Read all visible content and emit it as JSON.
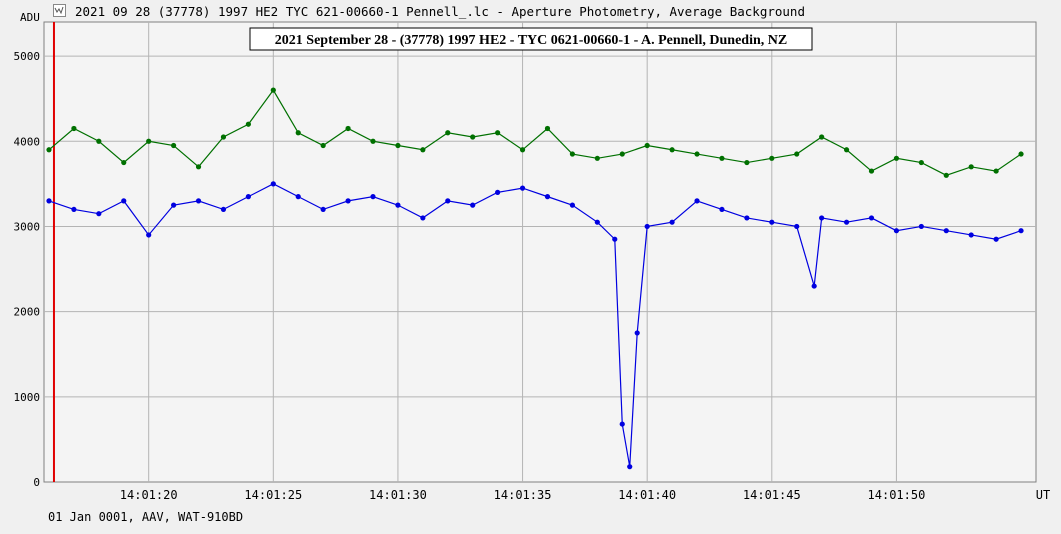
{
  "window": {
    "title": "2021 09 28 (37778) 1997 HE2 TYC 621-00660-1 Pennell_.lc - Aperture Photometry, Average Background",
    "icon": "lightcurve-app-icon"
  },
  "footer": {
    "info": "01 Jan 0001, AAV, WAT-910BD"
  },
  "chart_data": {
    "type": "line",
    "title": "2021 September 28 - (37778) 1997 HE2 - TYC 0621-00660-1 - A. Pennell, Dunedin, NZ",
    "ylabel": "ADU",
    "xunit": "UT",
    "ylim": [
      0,
      5400
    ],
    "xlim": [
      "14:01:15.8",
      "14:01:55.6"
    ],
    "xticks": [
      "14:01:20",
      "14:01:25",
      "14:01:30",
      "14:01:35",
      "14:01:40",
      "14:01:45",
      "14:01:50"
    ],
    "yticks": [
      0,
      1000,
      2000,
      3000,
      4000,
      5000
    ],
    "grid": true,
    "marker_line": {
      "x": "14:01:16.2",
      "color": "#e00000"
    },
    "series": [
      {
        "color": "#007000",
        "marker": "circle",
        "x": [
          "14:01:16",
          "14:01:17",
          "14:01:18",
          "14:01:19",
          "14:01:20",
          "14:01:21",
          "14:01:22",
          "14:01:23",
          "14:01:24",
          "14:01:25",
          "14:01:26",
          "14:01:27",
          "14:01:28",
          "14:01:29",
          "14:01:30",
          "14:01:31",
          "14:01:32",
          "14:01:33",
          "14:01:34",
          "14:01:35",
          "14:01:36",
          "14:01:37",
          "14:01:38",
          "14:01:39",
          "14:01:40",
          "14:01:41",
          "14:01:42",
          "14:01:43",
          "14:01:44",
          "14:01:45",
          "14:01:46",
          "14:01:47",
          "14:01:48",
          "14:01:49",
          "14:01:50",
          "14:01:51",
          "14:01:52",
          "14:01:53",
          "14:01:54",
          "14:01:55"
        ],
        "values": [
          3900,
          4150,
          4000,
          3750,
          4000,
          3950,
          3700,
          4050,
          4200,
          4600,
          4100,
          3950,
          4150,
          4000,
          3950,
          3900,
          4100,
          4050,
          4100,
          3900,
          4150,
          3850,
          3800,
          3850,
          3950,
          3900,
          3850,
          3800,
          3750,
          3800,
          3850,
          4050,
          3900,
          3650,
          3800,
          3750,
          3600,
          3700,
          3650,
          3850
        ]
      },
      {
        "color": "#0000e0",
        "marker": "circle",
        "x": [
          "14:01:16",
          "14:01:17",
          "14:01:18",
          "14:01:19",
          "14:01:20",
          "14:01:21",
          "14:01:22",
          "14:01:23",
          "14:01:24",
          "14:01:25",
          "14:01:26",
          "14:01:27",
          "14:01:28",
          "14:01:29",
          "14:01:30",
          "14:01:31",
          "14:01:32",
          "14:01:33",
          "14:01:34",
          "14:01:35",
          "14:01:36",
          "14:01:37",
          "14:01:38",
          "14:01:38.7",
          "14:01:39",
          "14:01:39.3",
          "14:01:39.6",
          "14:01:40",
          "14:01:41",
          "14:01:42",
          "14:01:43",
          "14:01:44",
          "14:01:45",
          "14:01:46",
          "14:01:46.7",
          "14:01:47",
          "14:01:48",
          "14:01:49",
          "14:01:50",
          "14:01:51",
          "14:01:52",
          "14:01:53",
          "14:01:54",
          "14:01:55"
        ],
        "values": [
          3300,
          3200,
          3150,
          3300,
          2900,
          3250,
          3300,
          3200,
          3350,
          3500,
          3350,
          3200,
          3300,
          3350,
          3250,
          3100,
          3300,
          3250,
          3400,
          3450,
          3350,
          3250,
          3050,
          2850,
          680,
          180,
          1750,
          3000,
          3050,
          3300,
          3200,
          3100,
          3050,
          3000,
          2300,
          3100,
          3050,
          3100,
          2950,
          3000,
          2950,
          2900,
          2850,
          2950
        ]
      }
    ]
  }
}
